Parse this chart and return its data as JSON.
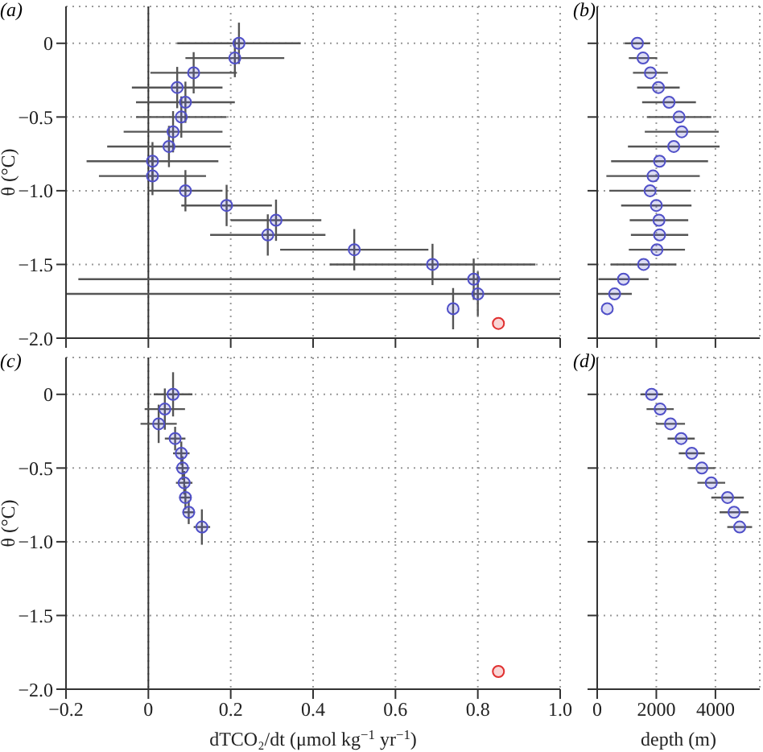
{
  "chart_data": [
    {
      "type": "scatter",
      "title": "(a)",
      "ylabel": "θ (°C)",
      "xlim": [
        -0.2,
        1.0
      ],
      "xticks": [
        -0.2,
        0,
        0.2,
        0.4,
        0.6,
        0.8,
        1
      ],
      "ylim": [
        -2,
        0.25
      ],
      "yticks": [
        {
          "value": -2,
          "label": "−2.0"
        },
        {
          "value": -1.5,
          "label": "−1.5"
        },
        {
          "value": -1,
          "label": "−1.0"
        },
        {
          "value": -0.5,
          "label": "−0.5"
        },
        0
      ],
      "tick_labels": "y",
      "grid": true,
      "marker": "circle",
      "ref_lines": [
        {
          "axis": "x",
          "value": 0
        }
      ],
      "series": [
        {
          "color": "#5050c8",
          "x": [
            0.22,
            0.21,
            0.11,
            0.07,
            0.09,
            0.08,
            0.06,
            0.05,
            0.01,
            0.01,
            0.09,
            0.19,
            0.31,
            0.29,
            0.5,
            0.69,
            0.79,
            0.8,
            0.74
          ],
          "values": [
            0,
            -0.1,
            -0.2,
            -0.3,
            -0.4,
            -0.5,
            -0.6,
            -0.7,
            -0.8,
            -0.9,
            -1.0,
            -1.1,
            -1.2,
            -1.3,
            -1.4,
            -1.5,
            -1.6,
            -1.7,
            -1.8
          ],
          "xerrors": [
            0.15,
            0.12,
            0.105,
            0.11,
            0.12,
            0.11,
            0.12,
            0.15,
            0.16,
            0.13,
            0.09,
            0.11,
            0.11,
            0.14,
            0.18,
            0.25,
            [
              -0.17,
              1.0
            ],
            [
              -0.2,
              1.0
            ],
            null
          ],
          "errors": [
            0.14,
            0.13,
            0.14,
            0.14,
            0.14,
            0.14,
            0.14,
            0.14,
            0.13,
            0.13,
            0.14,
            0.14,
            0.14,
            0.14,
            0.14,
            0.14,
            0.14,
            0.15,
            0.14
          ]
        },
        {
          "color": "#e03030",
          "x": [
            0.85
          ],
          "values": [
            -1.9
          ]
        }
      ]
    },
    {
      "type": "scatter",
      "title": "(b)",
      "xlim": [
        0,
        5500
      ],
      "xticks": [
        0,
        2000,
        4000
      ],
      "ylim": [
        -2,
        0.25
      ],
      "yticks": [
        -2,
        -1.5,
        -1,
        -0.5,
        0
      ],
      "tick_labels": false,
      "grid": true,
      "marker": "circle",
      "series": [
        {
          "color": "#5050c8",
          "x": [
            1360,
            1550,
            1800,
            2070,
            2430,
            2770,
            2860,
            2590,
            2110,
            1890,
            1790,
            2000,
            2090,
            2110,
            2020,
            1570,
            890,
            590,
            340
          ],
          "values": [
            0,
            -0.1,
            -0.2,
            -0.3,
            -0.4,
            -0.5,
            -0.6,
            -0.7,
            -0.8,
            -0.9,
            -1.0,
            -1.1,
            -1.2,
            -1.3,
            -1.4,
            -1.5,
            -1.6,
            -1.7,
            -1.8
          ],
          "xerrors": [
            430,
            480,
            590,
            720,
            910,
            1090,
            1250,
            1550,
            1640,
            1580,
            1380,
            1190,
            990,
            970,
            950,
            1110,
            850,
            580,
            null
          ]
        }
      ]
    },
    {
      "type": "scatter",
      "title": "(c)",
      "xlabel": "dTCO₂/dt (μmol kg$^{−1}$ yr$^{−1}$)",
      "ylabel": "θ (°C)",
      "xlim": [
        -0.2,
        1.0
      ],
      "xticks": [
        {
          "value": -0.2,
          "label": "−0.2"
        },
        0,
        0.2,
        0.4,
        0.6,
        0.8,
        {
          "value": 1.0,
          "label": "1.0"
        }
      ],
      "ylim": [
        -2,
        0.25
      ],
      "yticks": [
        {
          "value": -2,
          "label": "−2.0"
        },
        {
          "value": -1.5,
          "label": "−1.5"
        },
        {
          "value": -1,
          "label": "−1.0"
        },
        {
          "value": -0.5,
          "label": "−0.5"
        },
        0
      ],
      "grid": true,
      "marker": "circle",
      "ref_lines": [
        {
          "axis": "x",
          "value": 0
        }
      ],
      "series": [
        {
          "color": "#5050c8",
          "x": [
            0.06,
            0.04,
            0.025,
            0.065,
            0.08,
            0.083,
            0.087,
            0.09,
            0.098,
            0.13
          ],
          "values": [
            0,
            -0.1,
            -0.2,
            -0.3,
            -0.4,
            -0.5,
            -0.6,
            -0.7,
            -0.8,
            -0.9
          ],
          "xerrors": [
            0.047,
            0.049,
            0.044,
            0.025,
            0.02,
            0.015,
            0.02,
            0.015,
            0.015,
            0.02
          ],
          "errors": [
            0.15,
            0.14,
            0.13,
            0.08,
            0.08,
            0.08,
            0.08,
            0.08,
            0.08,
            0.12
          ]
        },
        {
          "color": "#e03030",
          "x": [
            0.85
          ],
          "values": [
            -1.88
          ]
        }
      ]
    },
    {
      "type": "scatter",
      "title": "(d)",
      "xlabel": "depth (m)",
      "xlim": [
        0,
        5500
      ],
      "xticks": [
        0,
        2000,
        4000
      ],
      "ylim": [
        -2,
        0.25
      ],
      "yticks": [
        -2,
        -1.5,
        -1,
        -0.5,
        0
      ],
      "tick_labels": "x",
      "grid": true,
      "marker": "circle",
      "series": [
        {
          "color": "#5050c8",
          "x": [
            1840,
            2130,
            2480,
            2840,
            3200,
            3540,
            3860,
            4410,
            4630,
            4820
          ],
          "values": [
            0,
            -0.1,
            -0.2,
            -0.3,
            -0.4,
            -0.5,
            -0.6,
            -0.7,
            -0.8,
            -0.9
          ],
          "xerrors": [
            380,
            460,
            490,
            460,
            440,
            450,
            470,
            550,
            490,
            420
          ]
        }
      ]
    }
  ]
}
